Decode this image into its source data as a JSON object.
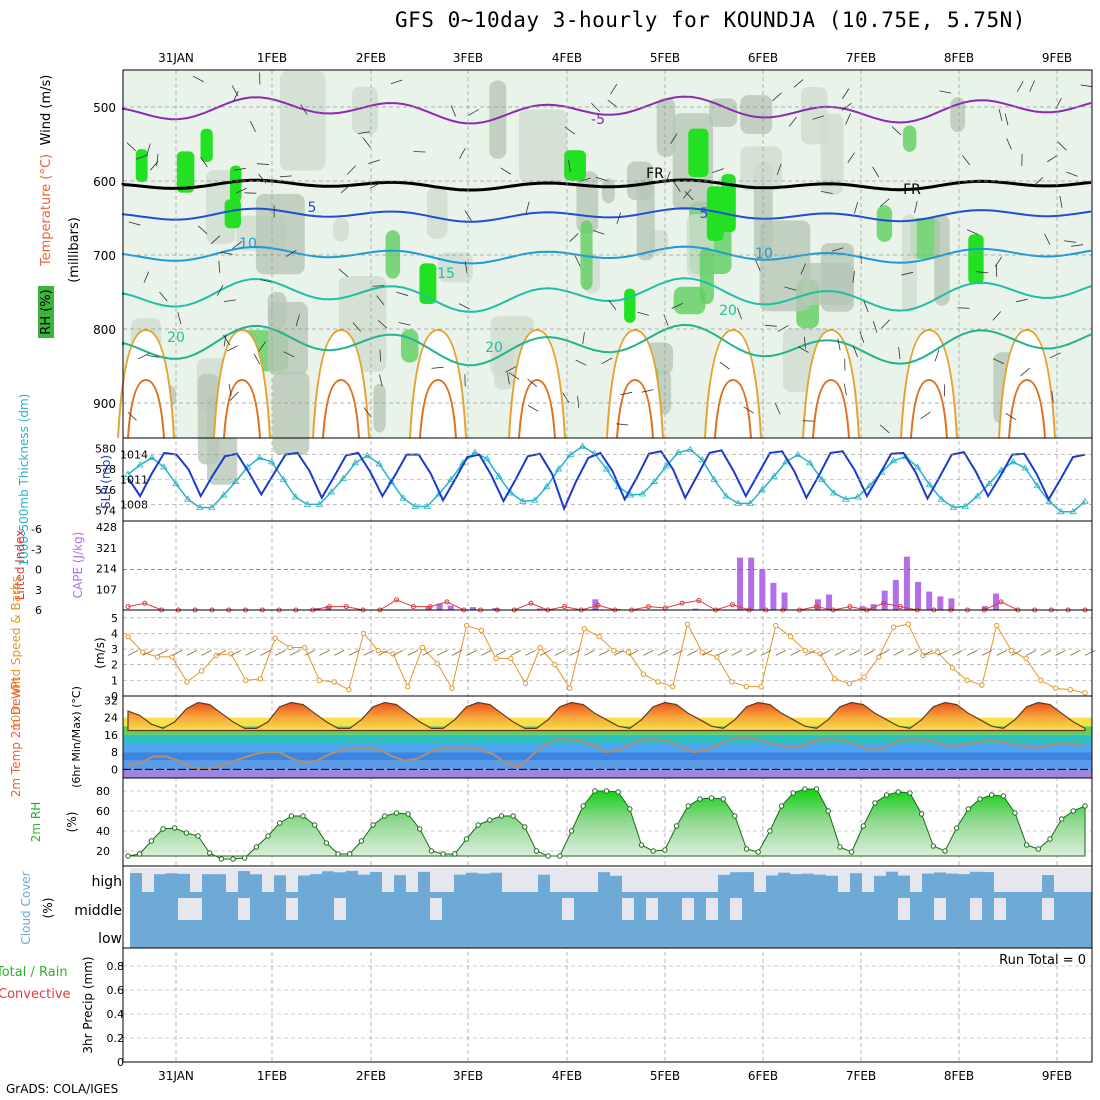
{
  "title": "GFS 0~10day 3-hourly for KOUNDJA (10.75E, 5.75N)",
  "credit": "GrADS: COLA/IGES",
  "days": [
    "31JAN",
    "1FEB",
    "2FEB",
    "3FEB",
    "4FEB",
    "5FEB",
    "6FEB",
    "7FEB",
    "8FEB",
    "9FEB"
  ],
  "colors": {
    "rh_green": "#3cb43c",
    "temp_label": "#e8623a",
    "wind_label": "#000000",
    "thickness": "#22b4c8",
    "slp": "#1a3cc8",
    "lifted_index": "#dc3c3c",
    "cape": "#b46ee6",
    "wind10m": "#e69628",
    "rh2m": "#28b428",
    "cloud": "#6fa9d6",
    "cloud_empty": "#e6e6ee",
    "precip_total": "#28b428",
    "precip_conv": "#dc3c3c"
  },
  "panels": {
    "upper": {
      "ylabel_parts": [
        "RH (%)",
        "Temperature (°C)",
        "Wind (m/s)"
      ],
      "ylabel_units": "(millibars)",
      "pressure_ticks": [
        "500",
        "600",
        "700",
        "800",
        "900"
      ],
      "isotherm_labels": [
        "-5",
        "5",
        "5",
        "10",
        "10",
        "15",
        "20",
        "20",
        "20",
        "FR",
        "FR"
      ]
    },
    "thickness": {
      "ylabel_left": "1000-500mb Thickness (dm)",
      "ylabel_right": "SLP (mb)",
      "left_ticks": [
        "580",
        "578",
        "576",
        "574"
      ],
      "right_ticks": [
        "1014",
        "1011",
        "1008"
      ]
    },
    "cape": {
      "ylabel_left": "Lifted Index",
      "ylabel_right": "CAPE (J/kg)",
      "left_ticks": [
        "-6",
        "-3",
        "0",
        "3",
        "6"
      ],
      "right_ticks": [
        "428",
        "321",
        "214",
        "107"
      ]
    },
    "wind10m": {
      "ylabel": "10m Wind Speed & Barbs",
      "ylabel_units": "(m/s)",
      "ticks": [
        "5",
        "4",
        "3",
        "2",
        "1",
        "0"
      ]
    },
    "temp2m": {
      "ylabel": "2m Temp 2m DewPt",
      "ylabel_sub": "(6hr Min/Max) (°C)",
      "ticks": [
        "32",
        "24",
        "16",
        "8",
        "0"
      ]
    },
    "rh2m": {
      "ylabel": "2m RH",
      "ylabel_units": "(%)",
      "ticks": [
        "80",
        "60",
        "40",
        "20"
      ]
    },
    "cloud": {
      "ylabel": "Cloud Cover",
      "ylabel_units": "(%)",
      "levels": [
        "high",
        "middle",
        "low"
      ]
    },
    "precip": {
      "ylabel_total": "Total / Rain",
      "ylabel_conv": "Convective",
      "ylabel_units": "3hr Precip (mm)",
      "ticks": [
        "0.8",
        "0.6",
        "0.4",
        "0.2",
        "0"
      ],
      "run_total": "Run Total = 0"
    }
  },
  "chart_data": [
    {
      "type": "line",
      "title": "1000-500mb Thickness (dm)",
      "x_unit": "3-hourly steps from 30JAN 18Z",
      "series": [
        {
          "name": "1000-500mb Thickness (dm)",
          "axis": "left",
          "values": [
            577.5,
            578.4,
            579.1,
            578.2,
            576.6,
            575.1,
            574.3,
            574.3,
            575.5,
            576.8,
            578.2,
            579.1,
            578.7,
            577.0,
            575.3,
            574.6,
            574.6,
            575.8,
            577.1,
            578.6,
            579.3,
            578.5,
            576.8,
            575.2,
            574.4,
            574.4,
            575.6,
            577.0,
            578.6,
            579.6,
            579.0,
            577.3,
            575.7,
            574.9,
            575.0,
            576.3,
            578.0,
            579.4,
            580.2,
            579.5,
            578.0,
            576.3,
            575.5,
            575.6,
            576.8,
            578.3,
            579.6,
            579.9,
            578.9,
            577.0,
            575.4,
            574.7,
            574.7,
            576.0,
            577.3,
            578.7,
            579.4,
            578.6,
            577.0,
            575.7,
            575.1,
            575.3,
            576.4,
            577.7,
            578.8,
            579.2,
            578.2,
            576.5,
            575.1,
            574.3,
            574.4,
            575.4,
            576.6,
            577.9,
            578.7,
            578.1,
            576.4,
            574.9,
            573.9,
            573.9,
            574.9
          ]
        }
      ],
      "ylim_left": [
        573,
        581
      ]
    },
    {
      "type": "line",
      "title": "SLP (mb)",
      "series": [
        {
          "name": "SLP (mb)",
          "axis": "right",
          "values": [
            1011.2,
            1009.0,
            1011.8,
            1014.2,
            1014.0,
            1012.2,
            1009.0,
            1011.5,
            1013.8,
            1014.1,
            1011.8,
            1009.2,
            1011.6,
            1014.0,
            1014.2,
            1012.0,
            1008.8,
            1011.3,
            1013.9,
            1014.2,
            1011.9,
            1009.0,
            1011.4,
            1014.0,
            1014.0,
            1011.7,
            1008.5,
            1011.0,
            1013.7,
            1014.0,
            1011.5,
            1008.4,
            1011.0,
            1013.8,
            1014.1,
            1011.7,
            1007.5,
            1010.8,
            1013.6,
            1014.2,
            1012.0,
            1008.6,
            1011.2,
            1014.1,
            1014.4,
            1012.2,
            1008.8,
            1011.5,
            1014.2,
            1014.5,
            1012.0,
            1009.0,
            1011.6,
            1014.2,
            1014.4,
            1012.0,
            1008.8,
            1011.4,
            1014.2,
            1014.4,
            1012.1,
            1009.0,
            1011.5,
            1014.1,
            1014.2,
            1011.9,
            1008.7,
            1011.3,
            1014.0,
            1014.3,
            1011.9,
            1009.0,
            1011.4,
            1014.0,
            1014.1,
            1011.7,
            1008.6,
            1011.1,
            1013.7,
            1014.0
          ]
        }
      ],
      "ylim_right": [
        1006,
        1016
      ]
    },
    {
      "type": "bar",
      "title": "CAPE (J/kg)",
      "series": [
        {
          "name": "CAPE (J/kg)",
          "axis": "right",
          "values": [
            0,
            0,
            0,
            0,
            0,
            0,
            0,
            0,
            0,
            0,
            0,
            0,
            0,
            0,
            0,
            0,
            0,
            10,
            20,
            0,
            0,
            0,
            0,
            0,
            0,
            0,
            0,
            18,
            34,
            23,
            0,
            15,
            0,
            10,
            0,
            0,
            0,
            8,
            0,
            0,
            0,
            0,
            55,
            0,
            5,
            0,
            0,
            0,
            0,
            0,
            0,
            7,
            0,
            0,
            0,
            270,
            270,
            210,
            140,
            90,
            0,
            0,
            55,
            80,
            0,
            0,
            20,
            30,
            100,
            155,
            275,
            145,
            95,
            70,
            60,
            0,
            0,
            20,
            85,
            0,
            0,
            0,
            0,
            0,
            0,
            0,
            0
          ]
        }
      ]
    },
    {
      "type": "line",
      "title": "Lifted Index",
      "series": [
        {
          "name": "Lifted Index",
          "axis": "left",
          "values": [
            5.5,
            5.0,
            6,
            6,
            6,
            6,
            6,
            6,
            6,
            6,
            6,
            6,
            5.5,
            5.5,
            6,
            6,
            4.5,
            5.5,
            5.5,
            4.8,
            6,
            6,
            6,
            6,
            5,
            6,
            5.5,
            6,
            5.3,
            6,
            6,
            5.5,
            5.7,
            5.0,
            4.6,
            6,
            5.2,
            6,
            6,
            6,
            6,
            5.5,
            6,
            5.5,
            6,
            5.0,
            5.5,
            6,
            6,
            6,
            6,
            6,
            4.8,
            6,
            6,
            6,
            6,
            6
          ]
        }
      ]
    },
    {
      "type": "line",
      "title": "10m Wind Speed (m/s)",
      "series": [
        {
          "name": "10m Wind Speed",
          "values": [
            3.8,
            2.8,
            2.5,
            2.5,
            0.9,
            1.6,
            2.6,
            2.7,
            1.0,
            1.1,
            3.7,
            3.1,
            3.1,
            1.0,
            0.9,
            0.4,
            4.0,
            2.9,
            2.7,
            0.6,
            3.1,
            2.1,
            0.5,
            4.5,
            4.2,
            2.4,
            2.4,
            0.8,
            3.1,
            2.0,
            0.5,
            4.3,
            3.8,
            2.9,
            2.8,
            1.4,
            0.9,
            0.6,
            4.6,
            2.8,
            2.5,
            0.9,
            0.6,
            0.6,
            4.5,
            3.8,
            2.9,
            2.7,
            1.1,
            0.8,
            1.2,
            2.5,
            4.4,
            4.6,
            2.6,
            2.8,
            1.8,
            1.0,
            0.7,
            4.5,
            2.9,
            2.4,
            1.0,
            0.5,
            0.4,
            0.2
          ]
        }
      ]
    },
    {
      "type": "area",
      "title": "2m Temp (°C)",
      "series": [
        {
          "name": "2m Temp",
          "values": [
            27,
            25,
            21,
            19,
            22,
            28,
            31,
            30,
            26,
            22,
            19,
            19,
            22,
            29,
            31,
            30,
            26,
            22,
            19,
            19,
            23,
            29,
            31,
            30,
            26,
            22,
            19,
            19,
            23,
            29,
            31,
            30,
            26,
            22,
            19,
            19,
            23,
            29,
            31,
            30,
            26,
            23,
            20,
            19,
            23,
            29,
            31,
            30,
            26,
            23,
            20,
            19,
            23,
            29,
            31,
            30,
            26,
            23,
            20,
            19,
            23,
            29,
            31,
            30,
            26,
            23,
            20,
            19,
            23,
            29,
            31,
            30,
            26,
            23,
            20,
            19,
            23,
            29,
            31,
            30,
            26,
            22,
            19
          ]
        },
        {
          "name": "2m DewPt",
          "values": [
            2,
            3,
            6,
            6,
            4,
            1,
            0,
            1,
            3,
            5,
            7,
            8,
            8,
            5,
            3,
            4,
            7,
            9,
            10,
            10,
            9,
            6,
            4,
            5,
            8,
            10,
            10,
            10,
            9,
            7,
            3,
            1,
            6,
            11,
            14,
            14,
            13,
            11,
            8,
            9,
            12,
            14,
            14,
            13,
            10,
            8,
            9,
            12,
            14,
            15,
            14,
            12,
            11,
            10,
            12,
            14,
            14,
            13,
            11,
            9,
            10,
            13,
            14,
            14,
            13,
            11,
            11,
            12,
            13,
            13,
            12,
            11,
            10,
            11,
            12,
            12,
            11
          ]
        }
      ]
    },
    {
      "type": "area",
      "title": "2m RH (%)",
      "series": [
        {
          "name": "2m RH",
          "values": [
            15,
            17,
            30,
            42,
            43,
            38,
            35,
            18,
            12,
            12,
            13,
            24,
            35,
            48,
            55,
            55,
            46,
            28,
            17,
            17,
            30,
            46,
            55,
            58,
            57,
            42,
            20,
            17,
            17,
            32,
            46,
            51,
            55,
            55,
            44,
            20,
            15,
            15,
            40,
            65,
            80,
            80,
            79,
            62,
            26,
            20,
            21,
            45,
            65,
            72,
            73,
            72,
            55,
            22,
            19,
            40,
            65,
            78,
            82,
            82,
            60,
            24,
            19,
            45,
            68,
            76,
            79,
            78,
            57,
            25,
            20,
            43,
            62,
            72,
            76,
            75,
            58,
            26,
            22,
            32,
            52,
            60,
            65
          ]
        }
      ]
    },
    {
      "type": "bar",
      "title": "3hr Precip (mm)",
      "series": [
        {
          "name": "Total / Rain",
          "values": [
            0
          ]
        },
        {
          "name": "Convective",
          "values": [
            0
          ]
        }
      ],
      "ylim": [
        0,
        0.9
      ]
    }
  ]
}
